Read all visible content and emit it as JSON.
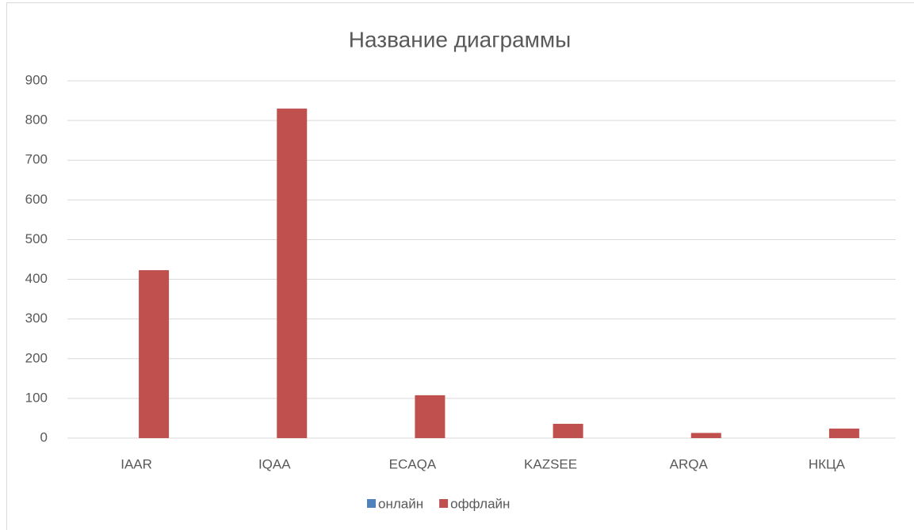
{
  "chart_data": {
    "type": "bar",
    "title": "Название диаграммы",
    "categories": [
      "IAAR",
      "IQAA",
      "ECAQA",
      "KAZSEE",
      "ARQA",
      "НКЦА"
    ],
    "series": [
      {
        "name": "онлайн",
        "color": "#4f81bd",
        "values": [
          0,
          0,
          0,
          0,
          0,
          0
        ]
      },
      {
        "name": "оффлайн",
        "color": "#c0504d",
        "values": [
          423,
          830,
          108,
          36,
          13,
          24
        ]
      }
    ],
    "ylim": [
      0,
      900
    ],
    "yticks": [
      0,
      100,
      200,
      300,
      400,
      500,
      600,
      700,
      800,
      900
    ],
    "grid": true,
    "legend": "bottom"
  }
}
